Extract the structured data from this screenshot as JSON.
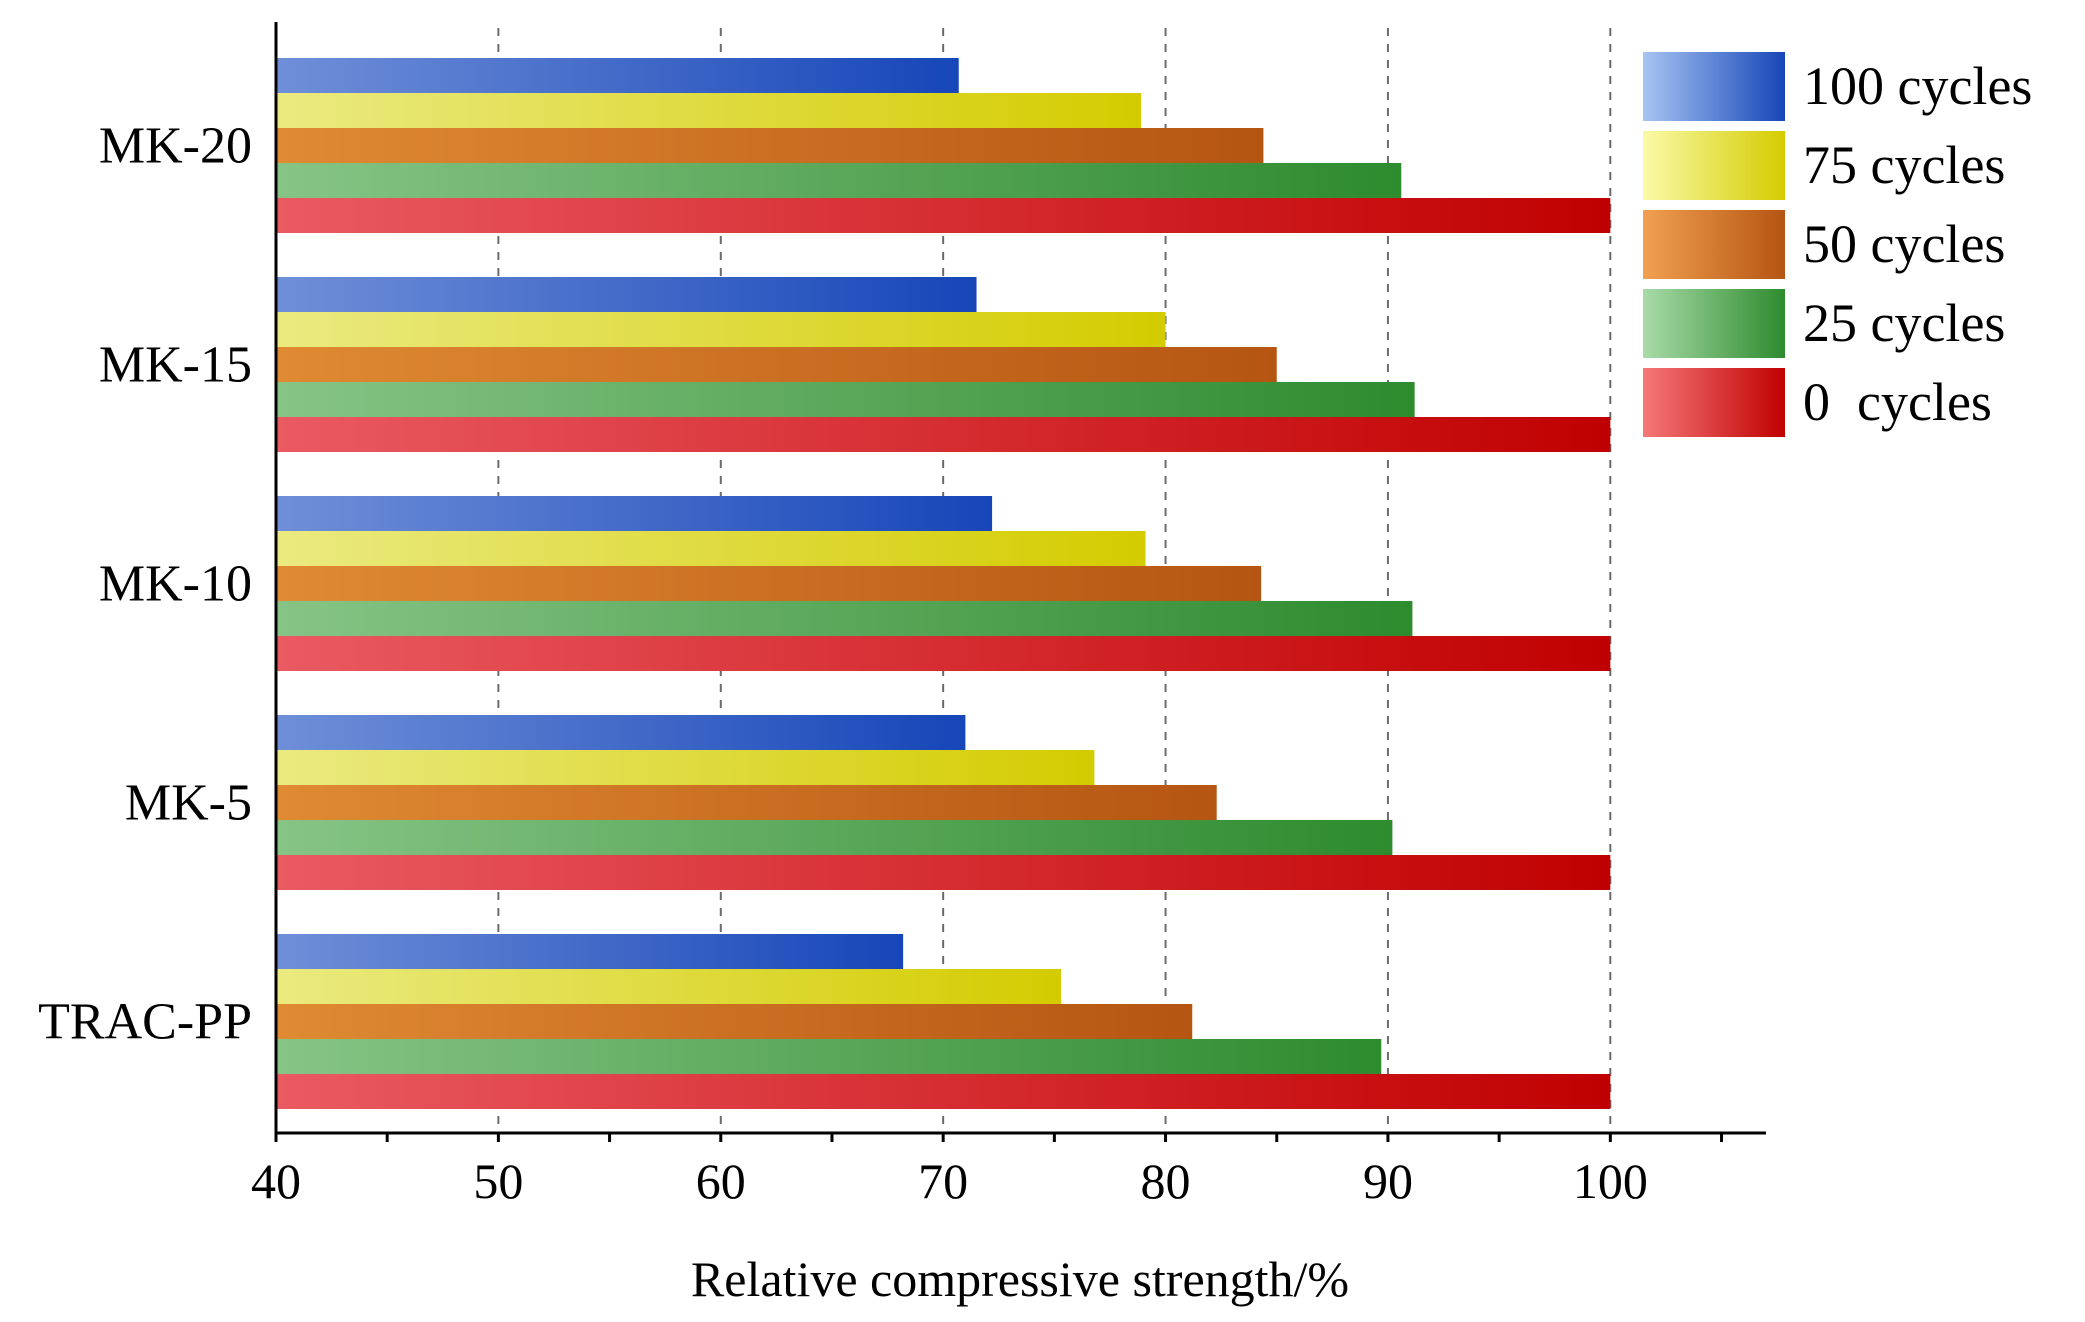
{
  "chart_data": {
    "type": "bar",
    "orientation": "horizontal",
    "title": "",
    "xlabel": "Relative compressive strength/%",
    "ylabel": "",
    "xlim": [
      40,
      107
    ],
    "xticks": [
      40,
      50,
      60,
      70,
      80,
      90,
      100
    ],
    "grid": "vertical dashed at 50, 60, 70, 80, 90, 100",
    "legend_position": "top-right",
    "categories": [
      "MK-20",
      "MK-15",
      "MK-10",
      "MK-5",
      "TRAC-PP"
    ],
    "series": [
      {
        "name": "100 cycles",
        "values": [
          70.7,
          71.5,
          72.2,
          71.0,
          68.2
        ]
      },
      {
        "name": "75 cycles",
        "values": [
          78.9,
          80.0,
          79.1,
          76.8,
          75.3
        ]
      },
      {
        "name": "50 cycles",
        "values": [
          84.4,
          85.0,
          84.3,
          82.3,
          81.2
        ]
      },
      {
        "name": "25 cycles",
        "values": [
          90.6,
          91.2,
          91.1,
          90.2,
          89.7
        ]
      },
      {
        "name": "0  cycles",
        "values": [
          100,
          100,
          100,
          100,
          100
        ]
      }
    ],
    "colors": {
      "100 cycles": {
        "light": "#6f8fd8",
        "dark": "#1646b8",
        "legend_light": "#a7c4f2"
      },
      "75 cycles": {
        "light": "#eaea80",
        "dark": "#d4cc00",
        "legend_light": "#fafaa8"
      },
      "50 cycles": {
        "light": "#e08a33",
        "dark": "#b55512",
        "legend_light": "#f0a050"
      },
      "25 cycles": {
        "light": "#86c486",
        "dark": "#2e8b2e",
        "legend_light": "#a8dba8"
      },
      "0  cycles": {
        "light": "#ea5a62",
        "dark": "#c00000",
        "legend_light": "#f57878"
      }
    }
  }
}
